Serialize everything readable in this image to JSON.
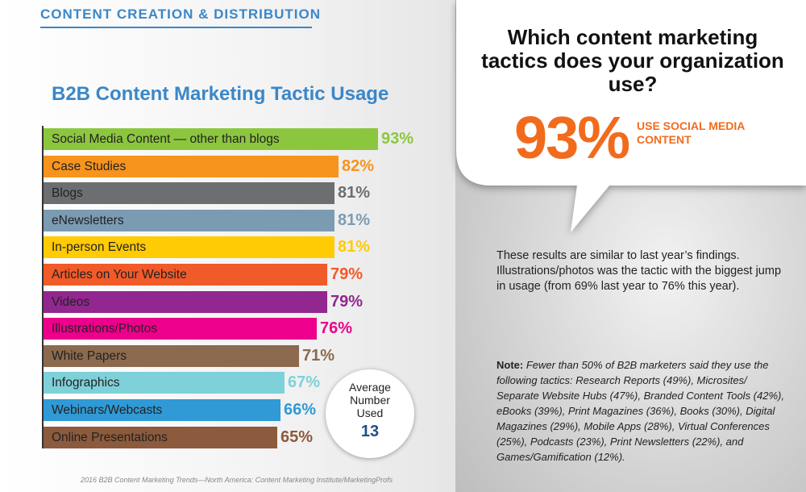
{
  "header": {
    "section_title": "CONTENT CREATION & DISTRIBUTION"
  },
  "colors": {
    "accent_blue": "#3a87c8",
    "highlight_orange": "#f26b1d"
  },
  "chart_data": {
    "type": "bar",
    "orientation": "horizontal",
    "title": "B2B Content Marketing Tactic Usage",
    "categories": [
      "Social Media Content — other than blogs",
      "Case Studies",
      "Blogs",
      "eNewsletters",
      "In-person Events",
      "Articles on Your Website",
      "Videos",
      "Illustrations/Photos",
      "White Papers",
      "Infographics",
      "Webinars/Webcasts",
      "Online Presentations"
    ],
    "values": [
      93,
      82,
      81,
      81,
      81,
      79,
      79,
      76,
      71,
      67,
      66,
      65
    ],
    "value_labels": [
      "93%",
      "82%",
      "81%",
      "81%",
      "81%",
      "79%",
      "79%",
      "76%",
      "71%",
      "67%",
      "66%",
      "65%"
    ],
    "colors": [
      "#8cc63f",
      "#f7941d",
      "#6d6e71",
      "#7b9bb3",
      "#ffcb05",
      "#f15a29",
      "#92278f",
      "#ec008c",
      "#8b6a4f",
      "#7fd1d9",
      "#2f9ad6",
      "#8c5a3c"
    ],
    "xlim": [
      0,
      100
    ],
    "grid": false,
    "legend": "none"
  },
  "average": {
    "label": "Average\nNumber\nUsed",
    "value": "13"
  },
  "source": "2016 B2B Content Marketing Trends—North America: Content Marketing Institute/MarketingProfs",
  "callout": {
    "question": "Which content marketing tactics does your organization use?",
    "big_percent": "93%",
    "big_text": "USE SOCIAL MEDIA CONTENT"
  },
  "findings": "These results are similar to last year’s findings. Illustrations/photos was the tactic with the biggest jump in usage (from 69% last year to 76% this year).",
  "note": {
    "label": "Note:",
    "text": "Fewer than 50% of B2B marketers said they use the following tactics: Research Reports (49%), Microsites/ Separate Website Hubs (47%), Branded Content Tools (42%), eBooks (39%), Print Magazines (36%), Books (30%), Digital Magazines (29%), Mobile Apps (28%), Virtual Conferences (25%), Podcasts (23%), Print Newsletters (22%), and Games/Gamification (12%)."
  }
}
